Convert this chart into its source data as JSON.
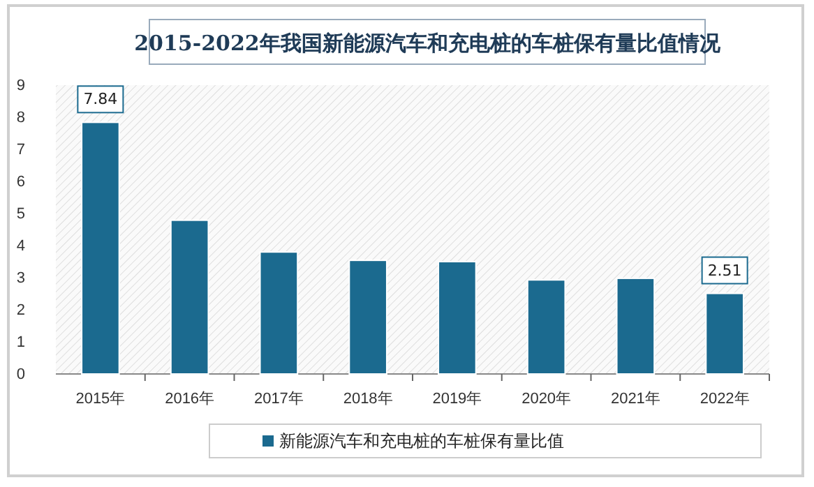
{
  "chart_data": {
    "type": "bar",
    "title": "2015-2022年我国新能源汽车和充电桩的车桩保有量比值情况",
    "categories": [
      "2015年",
      "2016年",
      "2017年",
      "2018年",
      "2019年",
      "2020年",
      "2021年",
      "2022年"
    ],
    "series": [
      {
        "name": "新能源汽车和充电桩的车桩保有量比值",
        "color": "#1b6a8f",
        "values": [
          7.84,
          4.79,
          3.8,
          3.54,
          3.5,
          2.93,
          2.98,
          2.51
        ],
        "value_labels": [
          "7.84",
          null,
          null,
          null,
          null,
          null,
          null,
          "2.51"
        ]
      }
    ],
    "ylim": [
      0,
      9
    ],
    "yticks": [
      0,
      1,
      2,
      3,
      4,
      5,
      6,
      7,
      8,
      9
    ],
    "grid": false,
    "legend": "bottom"
  }
}
